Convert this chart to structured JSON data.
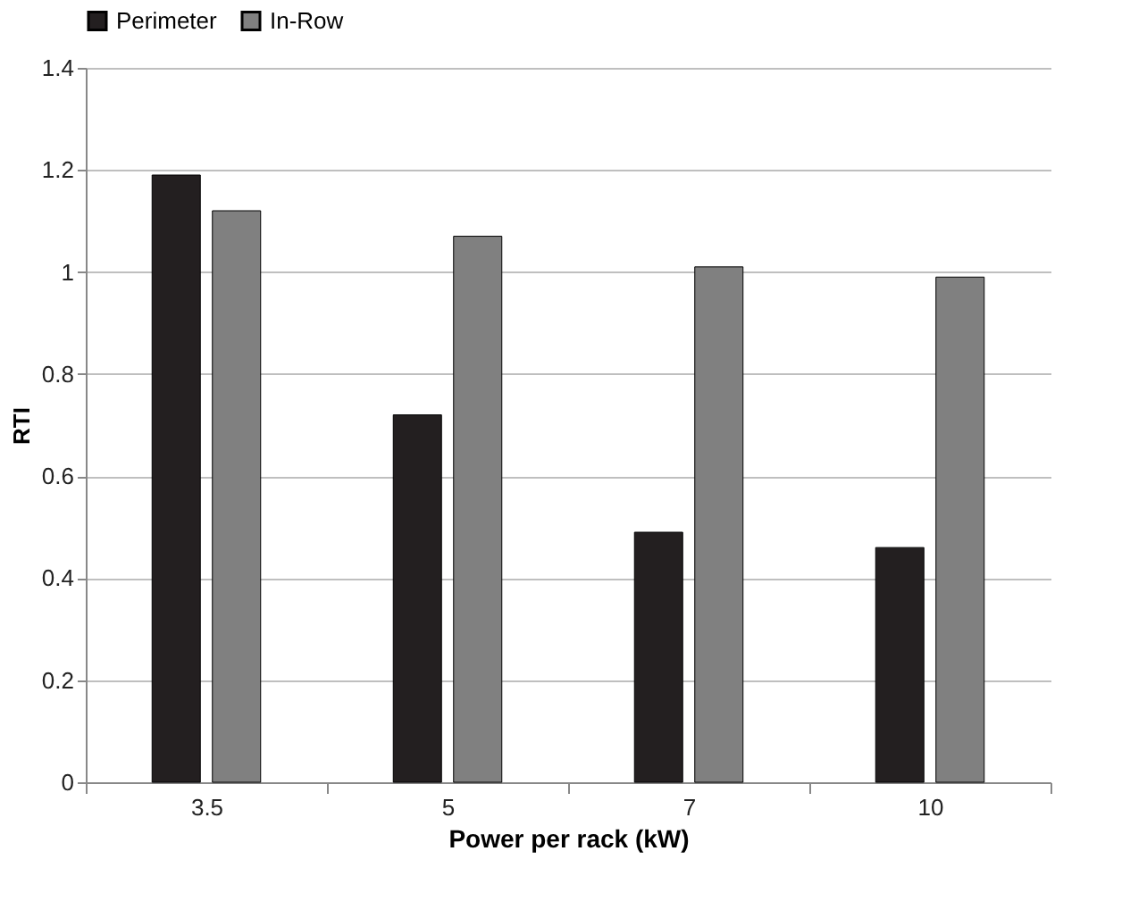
{
  "chart_data": {
    "type": "bar",
    "xlabel": "Power per rack (kW)",
    "ylabel": "RTI",
    "categories": [
      "3.5",
      "5",
      "7",
      "10"
    ],
    "series": [
      {
        "name": "Perimeter",
        "color": "#231f20",
        "values": [
          1.19,
          0.72,
          0.49,
          0.46
        ]
      },
      {
        "name": "In-Row",
        "color": "#808080",
        "values": [
          1.12,
          1.07,
          1.01,
          0.99
        ]
      }
    ],
    "ylim": [
      0,
      1.4
    ],
    "yticks": [
      0,
      0.2,
      0.4,
      0.6,
      0.8,
      1,
      1.2,
      1.4
    ],
    "grid": "y",
    "legend": "top"
  }
}
